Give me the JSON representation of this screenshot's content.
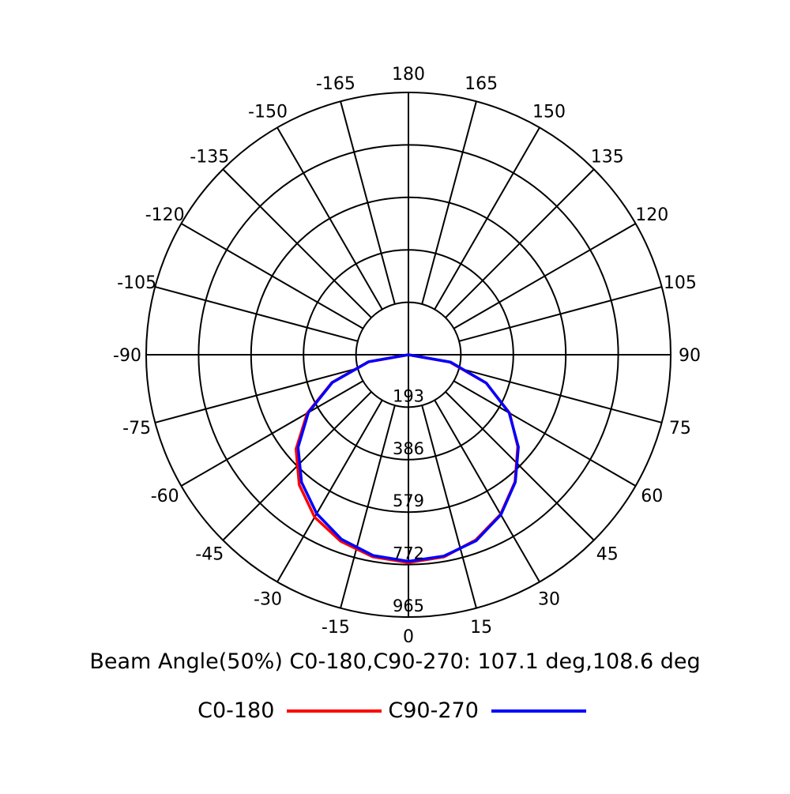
{
  "chart_data": {
    "type": "polar",
    "angle_labels": [
      "180",
      "165",
      "150",
      "135",
      "120",
      "105",
      "90",
      "75",
      "60",
      "45",
      "30",
      "15",
      "0",
      "-15",
      "-30",
      "-45",
      "-60",
      "-75",
      "-90",
      "-105",
      "-120",
      "-135",
      "-150",
      "-165"
    ],
    "angle_values": [
      180,
      165,
      150,
      135,
      120,
      105,
      90,
      75,
      60,
      45,
      30,
      15,
      0,
      -15,
      -30,
      -45,
      -60,
      -75,
      -90,
      -105,
      -120,
      -135,
      -150,
      -165
    ],
    "radial_ticks": [
      193,
      386,
      579,
      772,
      965
    ],
    "radial_tick_labels": [
      "193",
      "386",
      "579",
      "772",
      "965"
    ],
    "rlim": [
      0,
      965
    ],
    "grid": true,
    "legend_position": "bottom",
    "caption": "Beam Angle(50%) C0-180,C90-270: 107.1 deg,108.6 deg",
    "series": [
      {
        "name": "C0-180",
        "color": "#ff0000",
        "points": [
          {
            "angle": -90,
            "value": 0
          },
          {
            "angle": -80,
            "value": 150
          },
          {
            "angle": -70,
            "value": 300
          },
          {
            "angle": -60,
            "value": 430
          },
          {
            "angle": -50,
            "value": 540
          },
          {
            "angle": -40,
            "value": 625
          },
          {
            "angle": -30,
            "value": 690
          },
          {
            "angle": -20,
            "value": 730
          },
          {
            "angle": -10,
            "value": 755
          },
          {
            "angle": 0,
            "value": 765
          },
          {
            "angle": 10,
            "value": 755
          },
          {
            "angle": 20,
            "value": 725
          },
          {
            "angle": 30,
            "value": 678
          },
          {
            "angle": 40,
            "value": 610
          },
          {
            "angle": 50,
            "value": 525
          },
          {
            "angle": 60,
            "value": 430
          },
          {
            "angle": 70,
            "value": 305
          },
          {
            "angle": 80,
            "value": 155
          },
          {
            "angle": 90,
            "value": 0
          }
        ]
      },
      {
        "name": "C90-270",
        "color": "#0000ff",
        "points": [
          {
            "angle": -90,
            "value": 0
          },
          {
            "angle": -80,
            "value": 148
          },
          {
            "angle": -70,
            "value": 298
          },
          {
            "angle": -60,
            "value": 425
          },
          {
            "angle": -50,
            "value": 530
          },
          {
            "angle": -40,
            "value": 612
          },
          {
            "angle": -30,
            "value": 675
          },
          {
            "angle": -20,
            "value": 722
          },
          {
            "angle": -10,
            "value": 750
          },
          {
            "angle": 0,
            "value": 760
          },
          {
            "angle": 10,
            "value": 752
          },
          {
            "angle": 20,
            "value": 728
          },
          {
            "angle": 30,
            "value": 680
          },
          {
            "angle": 40,
            "value": 612
          },
          {
            "angle": 50,
            "value": 528
          },
          {
            "angle": 60,
            "value": 428
          },
          {
            "angle": 70,
            "value": 305
          },
          {
            "angle": 80,
            "value": 158
          },
          {
            "angle": 90,
            "value": 0
          }
        ]
      }
    ]
  },
  "legend": {
    "items": [
      {
        "label": "C0-180",
        "color": "#ff0000"
      },
      {
        "label": "C90-270",
        "color": "#0000ff"
      }
    ]
  }
}
